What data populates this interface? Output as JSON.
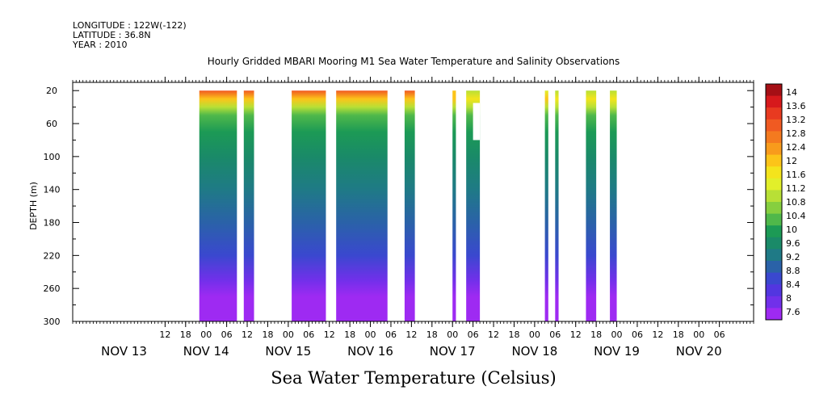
{
  "header": {
    "longitude": "LONGITUDE : 122W(-122)",
    "latitude": "LATITUDE : 36.8N",
    "year": "YEAR : 2010"
  },
  "chart_data": {
    "type": "heatmap",
    "title": "Hourly Gridded MBARI Mooring M1 Sea Water Temperature and Salinity Observations",
    "bottom_label": "Sea Water Temperature (Celsius)",
    "ylabel": "DEPTH (m)",
    "y_reversed": true,
    "ylim": [
      10,
      300
    ],
    "y_ticks": [
      20,
      60,
      100,
      140,
      180,
      220,
      260,
      300
    ],
    "x_range_hours": [
      "2010-11-12T09:00",
      "2010-11-20T16:00"
    ],
    "hour_tick_labels": [
      {
        "t": "2010-11-13T12:00",
        "label": "12"
      },
      {
        "t": "2010-11-13T18:00",
        "label": "18"
      },
      {
        "t": "2010-11-14T00:00",
        "label": "00"
      },
      {
        "t": "2010-11-14T06:00",
        "label": "06"
      },
      {
        "t": "2010-11-14T12:00",
        "label": "12"
      },
      {
        "t": "2010-11-14T18:00",
        "label": "18"
      },
      {
        "t": "2010-11-15T00:00",
        "label": "00"
      },
      {
        "t": "2010-11-15T06:00",
        "label": "06"
      },
      {
        "t": "2010-11-15T12:00",
        "label": "12"
      },
      {
        "t": "2010-11-15T18:00",
        "label": "18"
      },
      {
        "t": "2010-11-16T00:00",
        "label": "00"
      },
      {
        "t": "2010-11-16T06:00",
        "label": "06"
      },
      {
        "t": "2010-11-16T12:00",
        "label": "12"
      },
      {
        "t": "2010-11-16T18:00",
        "label": "18"
      },
      {
        "t": "2010-11-17T00:00",
        "label": "00"
      },
      {
        "t": "2010-11-17T06:00",
        "label": "06"
      },
      {
        "t": "2010-11-17T12:00",
        "label": "12"
      },
      {
        "t": "2010-11-17T18:00",
        "label": "18"
      },
      {
        "t": "2010-11-18T00:00",
        "label": "00"
      },
      {
        "t": "2010-11-18T06:00",
        "label": "06"
      },
      {
        "t": "2010-11-18T12:00",
        "label": "12"
      },
      {
        "t": "2010-11-18T18:00",
        "label": "18"
      },
      {
        "t": "2010-11-19T00:00",
        "label": "00"
      },
      {
        "t": "2010-11-19T06:00",
        "label": "06"
      },
      {
        "t": "2010-11-19T12:00",
        "label": "12"
      },
      {
        "t": "2010-11-19T18:00",
        "label": "18"
      },
      {
        "t": "2010-11-20T00:00",
        "label": "00"
      },
      {
        "t": "2010-11-20T06:00",
        "label": "06"
      }
    ],
    "day_labels": [
      {
        "t": "2010-11-13T00:00",
        "label": "NOV 13"
      },
      {
        "t": "2010-11-14T00:00",
        "label": "NOV 14"
      },
      {
        "t": "2010-11-15T00:00",
        "label": "NOV 15"
      },
      {
        "t": "2010-11-16T00:00",
        "label": "NOV 16"
      },
      {
        "t": "2010-11-17T00:00",
        "label": "NOV 17"
      },
      {
        "t": "2010-11-18T00:00",
        "label": "NOV 18"
      },
      {
        "t": "2010-11-19T00:00",
        "label": "NOV 19"
      },
      {
        "t": "2010-11-20T00:00",
        "label": "NOV 20"
      }
    ],
    "data_blocks": [
      {
        "start": "2010-11-13T22:00",
        "end": "2010-11-14T09:00",
        "surface_top_temp": 12.9,
        "depth_min": 20
      },
      {
        "start": "2010-11-14T11:00",
        "end": "2010-11-14T14:00",
        "surface_top_temp": 12.9,
        "depth_min": 20
      },
      {
        "start": "2010-11-15T01:00",
        "end": "2010-11-15T11:00",
        "surface_top_temp": 12.9,
        "depth_min": 20
      },
      {
        "start": "2010-11-15T14:00",
        "end": "2010-11-16T05:00",
        "surface_top_temp": 12.9,
        "depth_min": 20
      },
      {
        "start": "2010-11-16T10:00",
        "end": "2010-11-16T13:00",
        "surface_top_temp": 12.9,
        "depth_min": 20
      },
      {
        "start": "2010-11-17T00:00",
        "end": "2010-11-17T01:00",
        "surface_top_temp": 12.0,
        "depth_min": 20
      },
      {
        "start": "2010-11-17T04:00",
        "end": "2010-11-17T08:00",
        "surface_top_temp": 10.8,
        "depth_min": 20,
        "gap": {
          "start": "2010-11-17T06:00",
          "end": "2010-11-17T08:00",
          "depth_from": 35,
          "depth_to": 80
        }
      },
      {
        "start": "2010-11-18T03:00",
        "end": "2010-11-18T04:00",
        "surface_top_temp": 11.4,
        "depth_min": 20
      },
      {
        "start": "2010-11-18T06:00",
        "end": "2010-11-18T07:00",
        "surface_top_temp": 10.8,
        "depth_min": 20
      },
      {
        "start": "2010-11-18T15:00",
        "end": "2010-11-18T18:00",
        "surface_top_temp": 11.0,
        "depth_min": 20
      },
      {
        "start": "2010-11-18T22:00",
        "end": "2010-11-19T00:00",
        "surface_top_temp": 10.8,
        "depth_min": 20
      }
    ],
    "profile_depth_temp": [
      [
        20,
        12.9
      ],
      [
        30,
        11.8
      ],
      [
        40,
        10.8
      ],
      [
        50,
        10.2
      ],
      [
        70,
        9.9
      ],
      [
        100,
        9.7
      ],
      [
        140,
        9.4
      ],
      [
        180,
        9.0
      ],
      [
        220,
        8.6
      ],
      [
        250,
        8.2
      ],
      [
        270,
        7.9
      ],
      [
        285,
        7.7
      ],
      [
        300,
        7.6
      ]
    ],
    "colorbar": {
      "levels": [
        "14",
        "13.6",
        "13.2",
        "12.8",
        "12.4",
        "12",
        "11.6",
        "11.2",
        "10.8",
        "10.4",
        "10",
        "9.6",
        "9.2",
        "8.8",
        "8.4",
        "8",
        "7.6"
      ],
      "colors": [
        "#a50f15",
        "#d7191c",
        "#e83a20",
        "#f05a22",
        "#f47a1f",
        "#f89b1c",
        "#fcc419",
        "#f4e41c",
        "#e2ef2a",
        "#b8e036",
        "#86cf3f",
        "#4fb84a",
        "#1c9a55",
        "#1a8a68",
        "#1f7a86",
        "#2a62a8",
        "#3a48cf",
        "#5236e0",
        "#7130ea",
        "#9e2af2"
      ]
    }
  }
}
